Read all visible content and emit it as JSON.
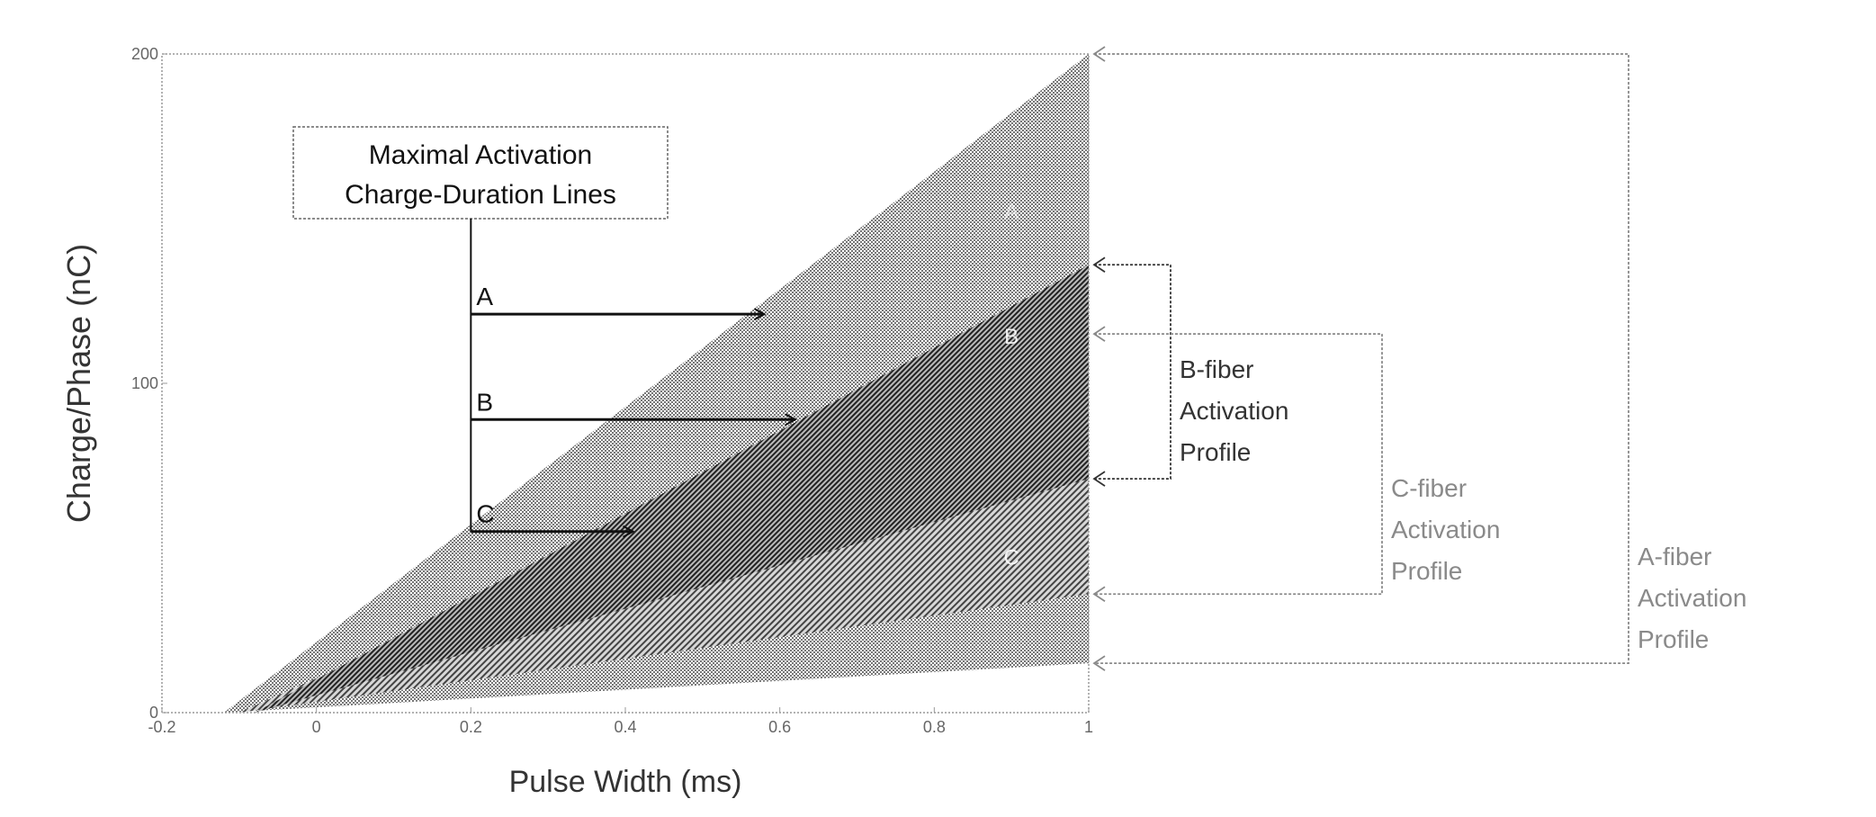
{
  "chart_data": {
    "type": "area",
    "xlabel": "Pulse Width (ms)",
    "ylabel": "Charge/Phase (nC)",
    "xlim": [
      -0.2,
      1
    ],
    "ylim": [
      0,
      200
    ],
    "xticks": [
      "-0.2",
      "0",
      "0.2",
      "0.4",
      "0.6",
      "0.8",
      "1"
    ],
    "xtick_values": [
      -0.2,
      0,
      0.2,
      0.4,
      0.6,
      0.8,
      1
    ],
    "yticks": [
      "0",
      "100",
      "200"
    ],
    "ytick_values": [
      0,
      100,
      200
    ],
    "grid": false,
    "regions": [
      {
        "label": "A",
        "upper": [
          [
            -0.12,
            0
          ],
          [
            1,
            200
          ]
        ],
        "lower": [
          [
            -0.12,
            0
          ],
          [
            1,
            15
          ]
        ],
        "pattern": "dots",
        "color": "#888888"
      },
      {
        "label": "B",
        "upper": [
          [
            -0.08,
            0
          ],
          [
            1,
            136
          ]
        ],
        "lower": [
          [
            -0.08,
            0
          ],
          [
            1,
            71
          ]
        ],
        "pattern": "hatch",
        "color": "#333333"
      },
      {
        "label": "C",
        "upper": [
          [
            -0.1,
            0
          ],
          [
            1,
            115
          ]
        ],
        "lower": [
          [
            -0.1,
            0
          ],
          [
            1,
            36
          ]
        ],
        "pattern": "hatch",
        "color": "#555555"
      }
    ],
    "annotation_box": {
      "line1": "Maximal Activation",
      "line2": "Charge-Duration Lines"
    },
    "arrows": [
      {
        "label": "A",
        "y": 121,
        "x_start": 0.2,
        "x_end": 0.58
      },
      {
        "label": "B",
        "y": 89,
        "x_start": 0.2,
        "x_end": 0.62
      },
      {
        "label": "C",
        "y": 55,
        "x_start": 0.2,
        "x_end": 0.41
      }
    ],
    "brackets": [
      {
        "name": "A-fiber",
        "lines": [
          "A-fiber",
          "Activation",
          "Profile"
        ],
        "range": [
          15,
          200
        ],
        "color": "#8a8a8a"
      },
      {
        "name": "B-fiber",
        "lines": [
          "B-fiber",
          "Activation",
          "Profile"
        ],
        "range": [
          71,
          136
        ],
        "color": "#333333"
      },
      {
        "name": "C-fiber",
        "lines": [
          "C-fiber",
          "Activation",
          "Profile"
        ],
        "range": [
          36,
          115
        ],
        "color": "#8a8a8a"
      }
    ]
  }
}
